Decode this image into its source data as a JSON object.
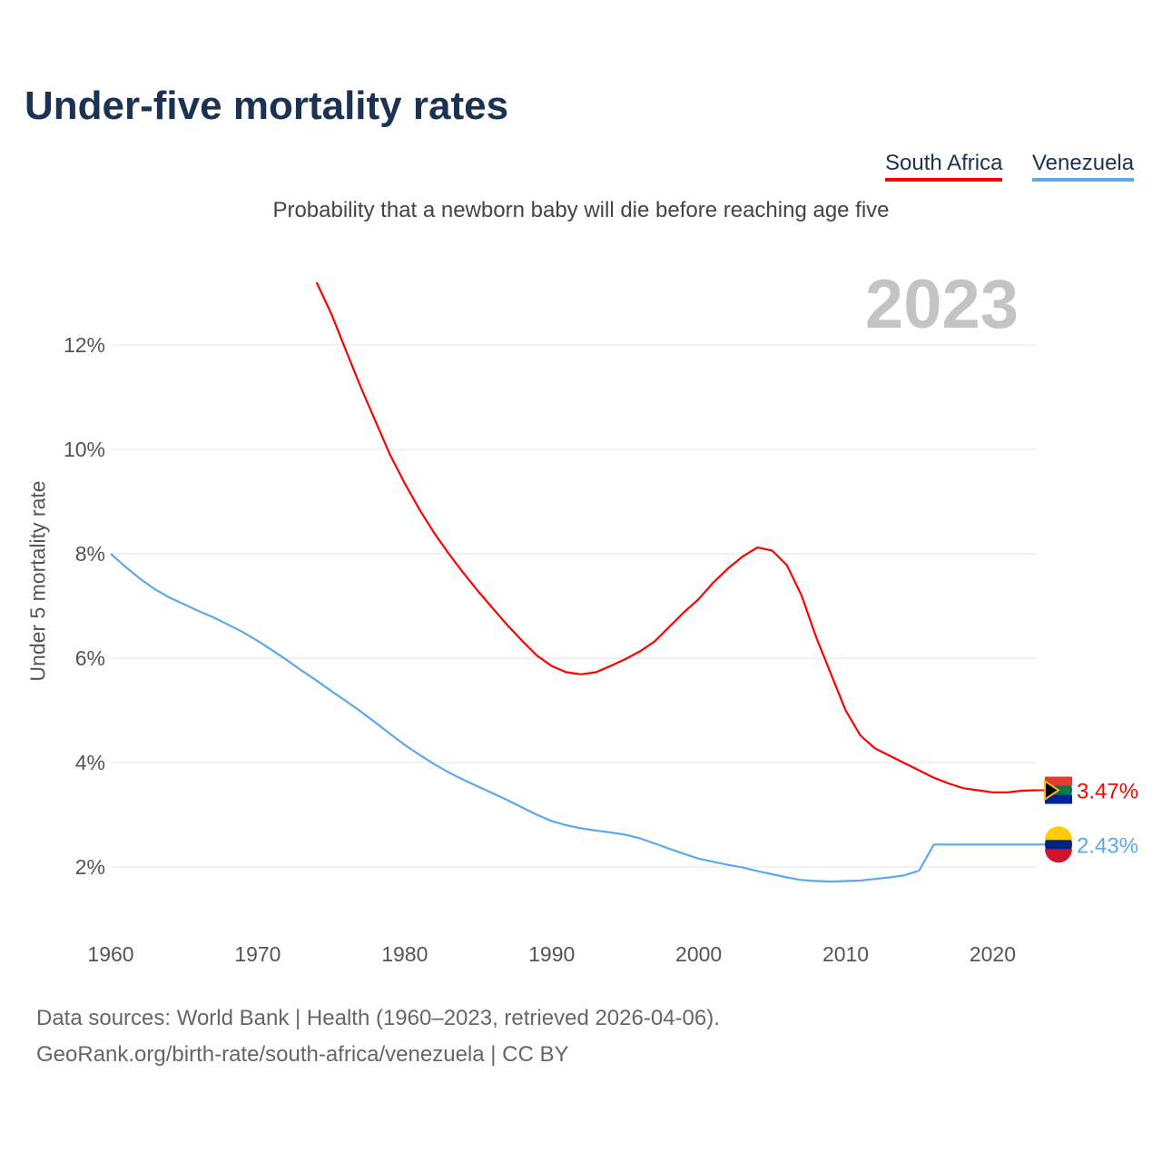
{
  "title": "Under-five mortality rates",
  "subtitle": "Probability that a newborn baby will die before reaching age five",
  "year_display": "2023",
  "footer": {
    "line1": "Data sources: World Bank | Health (1960–2023, retrieved 2026-04-06).",
    "line2": "GeoRank.org/birth-rate/south-africa/venezuela | CC BY"
  },
  "chart_data": {
    "type": "line",
    "title": "Under-five mortality rates",
    "ylabel": "Under 5 mortality rate",
    "xlabel": "",
    "xlim": [
      1960,
      2023
    ],
    "ylim": [
      1,
      13.5
    ],
    "grid": true,
    "legend_position": "top-right",
    "xticks": [
      "1960",
      "1970",
      "1980",
      "1990",
      "2000",
      "2010",
      "2020"
    ],
    "yticks": [
      "2%",
      "4%",
      "6%",
      "8%",
      "10%",
      "12%"
    ],
    "series": [
      {
        "name": "South Africa",
        "color": "#ff0000",
        "end_label": "3.47%",
        "start_year": 1974,
        "values": [
          13.2,
          12.6,
          11.9,
          11.2,
          10.55,
          9.9,
          9.35,
          8.85,
          8.4,
          8.0,
          7.63,
          7.28,
          6.95,
          6.63,
          6.33,
          6.05,
          5.85,
          5.73,
          5.69,
          5.73,
          5.85,
          5.98,
          6.13,
          6.32,
          6.6,
          6.88,
          7.13,
          7.45,
          7.72,
          7.95,
          8.12,
          8.06,
          7.78,
          7.2,
          6.4,
          5.7,
          5.0,
          4.52,
          4.27,
          4.13,
          3.99,
          3.85,
          3.71,
          3.6,
          3.51,
          3.47,
          3.43,
          3.43,
          3.46,
          3.47
        ]
      },
      {
        "name": "Venezuela",
        "color": "#5ca8ef",
        "end_label": "2.43%",
        "start_year": 1960,
        "values": [
          8.0,
          7.75,
          7.52,
          7.32,
          7.16,
          7.03,
          6.9,
          6.78,
          6.64,
          6.5,
          6.33,
          6.15,
          5.96,
          5.76,
          5.57,
          5.37,
          5.18,
          4.98,
          4.77,
          4.55,
          4.34,
          4.15,
          3.97,
          3.81,
          3.67,
          3.54,
          3.41,
          3.28,
          3.14,
          3.0,
          2.88,
          2.8,
          2.74,
          2.7,
          2.66,
          2.62,
          2.55,
          2.45,
          2.35,
          2.25,
          2.16,
          2.1,
          2.04,
          1.99,
          1.92,
          1.86,
          1.8,
          1.75,
          1.73,
          1.72,
          1.73,
          1.74,
          1.77,
          1.8,
          1.84,
          1.93,
          2.43,
          2.43,
          2.43,
          2.43,
          2.43,
          2.43,
          2.43,
          2.43
        ]
      }
    ]
  }
}
